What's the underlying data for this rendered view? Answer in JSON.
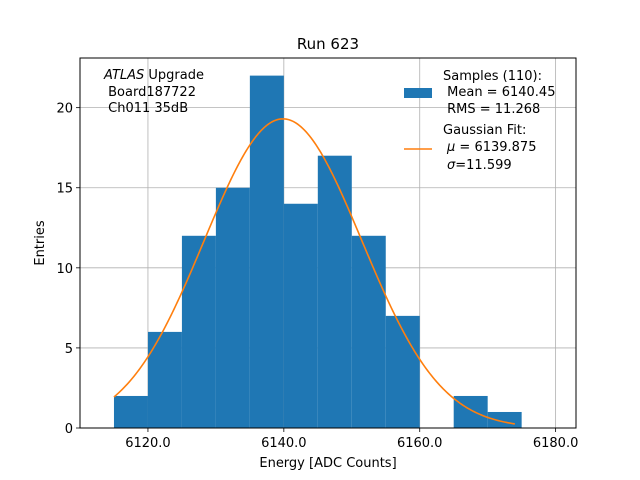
{
  "chart_data": {
    "type": "bar",
    "title": "Run 623",
    "xlabel": "Energy [ADC Counts]",
    "ylabel": "Entries",
    "xlim": [
      6110,
      6183
    ],
    "ylim": [
      0,
      23.1
    ],
    "xticks": [
      6120,
      6140,
      6160,
      6180
    ],
    "xtick_labels": [
      "6120.0",
      "6140.0",
      "6160.0",
      "6180.0"
    ],
    "yticks": [
      0,
      5,
      10,
      15,
      20
    ],
    "ytick_labels": [
      "0",
      "5",
      "10",
      "15",
      "20"
    ],
    "grid": true,
    "legend_placement": "top-right",
    "annotation": {
      "italic": "ATLAS",
      "rest": " Upgrade",
      "line2": " Board187722",
      "line3": " Ch011 35dB"
    },
    "histogram": {
      "bin_edges": [
        6115,
        6120,
        6125,
        6130,
        6135,
        6140,
        6145,
        6150,
        6155,
        6160,
        6165,
        6170,
        6175
      ],
      "counts": [
        2,
        6,
        12,
        15,
        22,
        14,
        17,
        12,
        7,
        0,
        2,
        1
      ],
      "color": "#1f77b4",
      "legend": {
        "line1": "Samples (110):",
        "line2": " Mean = 6140.45",
        "line3": " RMS = 11.268"
      }
    },
    "fit": {
      "type": "gaussian",
      "amplitude": 19.3,
      "mu": 6139.875,
      "sigma": 11.599,
      "x_range": [
        6115,
        6174
      ],
      "color": "#ff7f0e",
      "legend": {
        "line1": "Gaussian Fit:",
        "line2_sym": "μ",
        "line2_rest": " = 6139.875",
        "line3_sym": "σ",
        "line3_rest": "=11.599"
      }
    }
  }
}
